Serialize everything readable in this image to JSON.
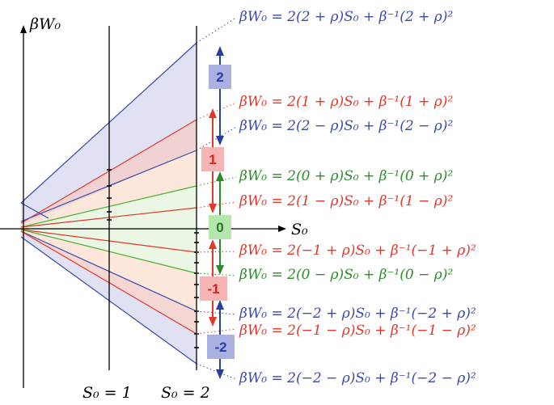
{
  "axes": {
    "y_label": "βW₀",
    "x_label": "S₀",
    "tick_1": "S₀ = 1",
    "tick_2": "S₀ = 2"
  },
  "colors": {
    "blue": "#3a4aa8",
    "red": "#e0392b",
    "green": "#2e8b2e",
    "blue_fill": "#dcdcf2",
    "red_fill": "#fde3d6",
    "green_fill": "#ebf5e3",
    "blue_badge": "#aab0e0",
    "red_badge": "#f7b4b4",
    "green_badge": "#b6e6b0"
  },
  "equations": [
    {
      "text": "βW₀ = 2(2 + ρ)S₀  +  β⁻¹(2 + ρ)²",
      "color": "blue"
    },
    {
      "text": "βW₀ = 2(1 + ρ)S₀  +  β⁻¹(1 + ρ)²",
      "color": "red"
    },
    {
      "text": "βW₀ = 2(2 − ρ)S₀  +  β⁻¹(2 − ρ)²",
      "color": "blue"
    },
    {
      "text": "βW₀ = 2(0 + ρ)S₀  +  β⁻¹(0 + ρ)²",
      "color": "green"
    },
    {
      "text": "βW₀ = 2(1 − ρ)S₀  +  β⁻¹(1 − ρ)²",
      "color": "red"
    },
    {
      "text": "βW₀ = 2(−1 + ρ)S₀  +  β⁻¹(−1 + ρ)²",
      "color": "red"
    },
    {
      "text": "βW₀ = 2(0 − ρ)S₀  +  β⁻¹(0 − ρ)²",
      "color": "green"
    },
    {
      "text": "βW₀ = 2(−2 + ρ)S₀  +  β⁻¹(−2 + ρ)²",
      "color": "blue"
    },
    {
      "text": "βW₀ = 2(−1 − ρ)S₀  +  β⁻¹(−1 − ρ)²",
      "color": "red"
    },
    {
      "text": "βW₀ = 2(−2 − ρ)S₀  +  β⁻¹(−2 − ρ)²",
      "color": "blue"
    }
  ],
  "badges": [
    {
      "label": "2",
      "color": "blue"
    },
    {
      "label": "1",
      "color": "red"
    },
    {
      "label": "0",
      "color": "green"
    },
    {
      "label": "-1",
      "color": "red"
    },
    {
      "label": "-2",
      "color": "blue"
    }
  ]
}
